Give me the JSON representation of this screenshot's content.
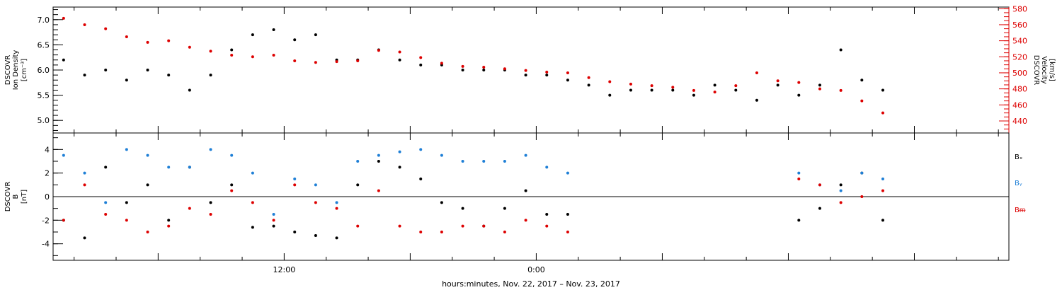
{
  "chart_data": [
    {
      "type": "scatter",
      "panel": "top",
      "ylabel_left": [
        "DSCOVR",
        "Ion Density",
        "[cm⁻³]"
      ],
      "ylabel_right": [
        "DSCOVR",
        "Velocity",
        "[km/s]"
      ],
      "ylim_left": [
        4.75,
        7.25
      ],
      "yticks_left": [
        "5.0",
        "5.5",
        "6.0",
        "6.5",
        "7.0"
      ],
      "ylim_right": [
        425,
        582
      ],
      "yticks_right": [
        "440",
        "460",
        "480",
        "500",
        "520",
        "540",
        "560",
        "580"
      ],
      "colors": {
        "density": "#000000",
        "velocity": "#dd0000"
      },
      "series": [
        {
          "axis": "left",
          "x": [
            -10.5,
            -9.5,
            -8.5,
            -7.5,
            -6.5,
            -5.5,
            -4.5,
            -3.5,
            -2.5,
            -1.5,
            -0.5,
            0.5,
            1.5,
            2.5,
            3.5,
            4.5,
            5.5,
            6.5,
            7.5,
            8.5,
            9.5,
            10.5,
            11.5,
            12.5,
            13.5,
            14.5,
            15.5,
            16.5,
            17.5,
            18.5,
            19.5,
            20.5,
            21.5,
            22.5,
            23.5,
            24.5,
            25.5,
            26.5,
            27.5,
            28.5,
            29.5,
            30.5,
            31.5,
            32.5,
            33.5
          ],
          "values": [
            6.2,
            5.9,
            6.0,
            5.8,
            6.0,
            5.9,
            5.6,
            5.9,
            6.4,
            6.7,
            6.8,
            6.6,
            6.7,
            6.2,
            6.2,
            6.4,
            6.2,
            6.1,
            6.1,
            6.0,
            6.0,
            6.0,
            5.9,
            5.9,
            5.8,
            5.7,
            5.5,
            5.6,
            5.6,
            5.6,
            5.5,
            5.7,
            5.6,
            5.4,
            5.7,
            5.5,
            5.7,
            6.4,
            5.8,
            5.6,
            null,
            null,
            null,
            null,
            null
          ]
        },
        {
          "axis": "right",
          "x": [
            -10.5,
            -9.5,
            -8.5,
            -7.5,
            -6.5,
            -5.5,
            -4.5,
            -3.5,
            -2.5,
            -1.5,
            -0.5,
            0.5,
            1.5,
            2.5,
            3.5,
            4.5,
            5.5,
            6.5,
            7.5,
            8.5,
            9.5,
            10.5,
            11.5,
            12.5,
            13.5,
            14.5,
            15.5,
            16.5,
            17.5,
            18.5,
            19.5,
            20.5,
            21.5,
            22.5,
            23.5,
            24.5,
            25.5,
            26.5,
            27.5,
            28.5,
            29.5,
            30.5,
            31.5,
            32.5,
            33.5
          ],
          "values": [
            568,
            560,
            555,
            545,
            538,
            540,
            532,
            527,
            522,
            520,
            522,
            515,
            513,
            514,
            515,
            528,
            526,
            519,
            512,
            508,
            507,
            505,
            503,
            501,
            500,
            494,
            489,
            486,
            484,
            482,
            478,
            476,
            484,
            500,
            490,
            488,
            480,
            478,
            465,
            450,
            null,
            null,
            null,
            null,
            null
          ]
        }
      ]
    },
    {
      "type": "scatter",
      "panel": "bottom",
      "ylabel": [
        "DSCOVR",
        "B",
        "[nT]"
      ],
      "ylim": [
        -5.4,
        5.4
      ],
      "yticks": [
        "-4",
        "-2",
        "0",
        "2",
        "4"
      ],
      "colors": {
        "bx": "#000000",
        "by": "#1e7fd6",
        "bz": "#dd0000"
      },
      "x": [
        -10.5,
        -9.5,
        -8.5,
        -7.5,
        -6.5,
        -5.5,
        -4.5,
        -3.5,
        -2.5,
        -1.5,
        -0.5,
        0.5,
        1.5,
        2.5,
        3.5,
        4.5,
        5.5,
        6.5,
        7.5,
        8.5,
        9.5,
        10.5,
        11.5,
        12.5,
        13.5,
        14.5,
        15.5,
        16.5,
        17.5,
        18.5,
        19.5,
        20.5,
        21.5,
        22.5,
        23.5,
        24.5,
        25.5,
        26.5,
        27.5,
        28.5,
        29.5,
        30.5,
        31.5,
        32.5,
        33.5
      ],
      "series": [
        {
          "name": "Bₓ",
          "values": [
            -2.0,
            -3.5,
            2.5,
            -0.5,
            1.0,
            -2.0,
            2.5,
            -0.5,
            1.0,
            -2.6,
            -2.5,
            -3.0,
            -3.3,
            -3.5,
            1.0,
            3.0,
            2.5,
            1.5,
            -0.5,
            -1.0,
            -2.5,
            -1.0,
            0.5,
            -1.5,
            -1.5,
            null,
            null,
            null,
            null,
            null,
            null,
            null,
            null,
            null,
            null,
            -2.0,
            -1.0,
            1.0,
            2.0,
            -2.0,
            null,
            null,
            null,
            null,
            null
          ]
        },
        {
          "name": "Bᵧ",
          "values": [
            3.5,
            2.0,
            -0.5,
            4.0,
            3.5,
            2.5,
            2.5,
            4.0,
            3.5,
            2.0,
            -1.5,
            1.5,
            1.0,
            -0.5,
            3.0,
            3.5,
            3.8,
            4.0,
            3.5,
            3.0,
            3.0,
            3.0,
            3.5,
            2.5,
            2.0,
            null,
            null,
            null,
            null,
            null,
            null,
            null,
            null,
            null,
            null,
            2.0,
            1.0,
            0.5,
            2.0,
            1.5,
            null,
            null,
            null,
            null,
            null
          ]
        },
        {
          "name": "Bᵯ",
          "values": [
            -2.0,
            1.0,
            -1.5,
            -2.0,
            -3.0,
            -2.5,
            -1.0,
            -1.5,
            0.5,
            -0.5,
            -2.0,
            1.0,
            -0.5,
            -1.0,
            -2.5,
            0.5,
            -2.5,
            -3.0,
            -3.0,
            -2.5,
            -2.5,
            -3.0,
            -2.0,
            -2.5,
            -3.0,
            null,
            null,
            null,
            null,
            null,
            null,
            null,
            null,
            null,
            null,
            1.5,
            1.0,
            -0.5,
            0.0,
            0.5,
            null,
            null,
            null,
            null,
            null
          ]
        }
      ]
    }
  ],
  "x_axis": {
    "range_hours": [
      -11,
      34.5
    ],
    "tick_labels": [
      "12:00",
      "0:00"
    ],
    "xlabel": "hours:minutes, Nov. 22, 2017 – Nov. 23, 2017"
  },
  "legend": [
    "Bₓ",
    "Bᵧ",
    "Bᵯ"
  ]
}
